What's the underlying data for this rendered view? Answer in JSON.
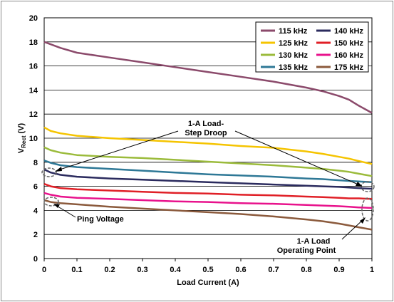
{
  "chart_data": {
    "type": "line",
    "xlabel": "Load Current (A)",
    "ylabel_main": "V",
    "ylabel_sub": "Rect",
    "ylabel_unit": " (V)",
    "xlim": [
      0,
      1
    ],
    "ylim": [
      0,
      20
    ],
    "x_ticks": [
      "0",
      "0.1",
      "0.2",
      "0.3",
      "0.4",
      "0.5",
      "0.6",
      "0.7",
      "0.8",
      "0.9",
      "1"
    ],
    "y_ticks": [
      "0",
      "2",
      "4",
      "6",
      "8",
      "10",
      "12",
      "14",
      "16",
      "18",
      "20"
    ],
    "grid": true,
    "legend_position": "top-right",
    "x": [
      0,
      0.02,
      0.05,
      0.1,
      0.2,
      0.3,
      0.4,
      0.5,
      0.6,
      0.7,
      0.8,
      0.85,
      0.9,
      0.93,
      0.96,
      1
    ],
    "series": [
      {
        "name": "115 kHz",
        "color": "#8b4a6b",
        "values": [
          18.0,
          17.8,
          17.5,
          17.1,
          16.7,
          16.3,
          15.9,
          15.5,
          15.1,
          14.7,
          14.2,
          13.9,
          13.5,
          13.2,
          12.7,
          12.1
        ]
      },
      {
        "name": "125 kHz",
        "color": "#f5c400",
        "values": [
          10.9,
          10.6,
          10.4,
          10.2,
          10.0,
          9.85,
          9.7,
          9.55,
          9.35,
          9.2,
          8.9,
          8.7,
          8.45,
          8.3,
          8.1,
          7.85
        ]
      },
      {
        "name": "130 kHz",
        "color": "#9bbb3b",
        "values": [
          9.25,
          9.0,
          8.8,
          8.6,
          8.45,
          8.35,
          8.2,
          8.05,
          7.9,
          7.75,
          7.55,
          7.45,
          7.3,
          7.2,
          7.05,
          6.85
        ]
      },
      {
        "name": "135 kHz",
        "color": "#2e7896",
        "values": [
          8.15,
          7.95,
          7.75,
          7.6,
          7.45,
          7.3,
          7.15,
          7.0,
          6.9,
          6.8,
          6.65,
          6.6,
          6.5,
          6.45,
          6.4,
          6.35
        ]
      },
      {
        "name": "140 kHz",
        "color": "#2b2b5e",
        "values": [
          7.4,
          7.15,
          6.95,
          6.8,
          6.65,
          6.55,
          6.45,
          6.35,
          6.25,
          6.15,
          6.05,
          6.0,
          5.95,
          5.9,
          5.85,
          5.8
        ]
      },
      {
        "name": "150 kHz",
        "color": "#e01f26",
        "values": [
          6.2,
          6.0,
          5.85,
          5.75,
          5.65,
          5.55,
          5.45,
          5.4,
          5.3,
          5.25,
          5.15,
          5.1,
          5.05,
          5.0,
          5.0,
          4.95
        ]
      },
      {
        "name": "160 kHz",
        "color": "#e8128c",
        "values": [
          5.45,
          5.3,
          5.15,
          5.05,
          4.95,
          4.85,
          4.75,
          4.7,
          4.6,
          4.55,
          4.45,
          4.4,
          4.35,
          4.3,
          4.25,
          4.2
        ]
      },
      {
        "name": "175 kHz",
        "color": "#8b5a3c",
        "values": [
          4.85,
          4.7,
          4.6,
          4.5,
          4.3,
          4.15,
          4.0,
          3.85,
          3.7,
          3.5,
          3.25,
          3.1,
          2.9,
          2.75,
          2.6,
          2.4
        ]
      }
    ],
    "annotations": {
      "droop_line1": "1-A Load-",
      "droop_line2": "Step Droop",
      "ping": "Ping Voltage",
      "op_line1": "1-A Load",
      "op_line2": "Operating Point"
    }
  }
}
